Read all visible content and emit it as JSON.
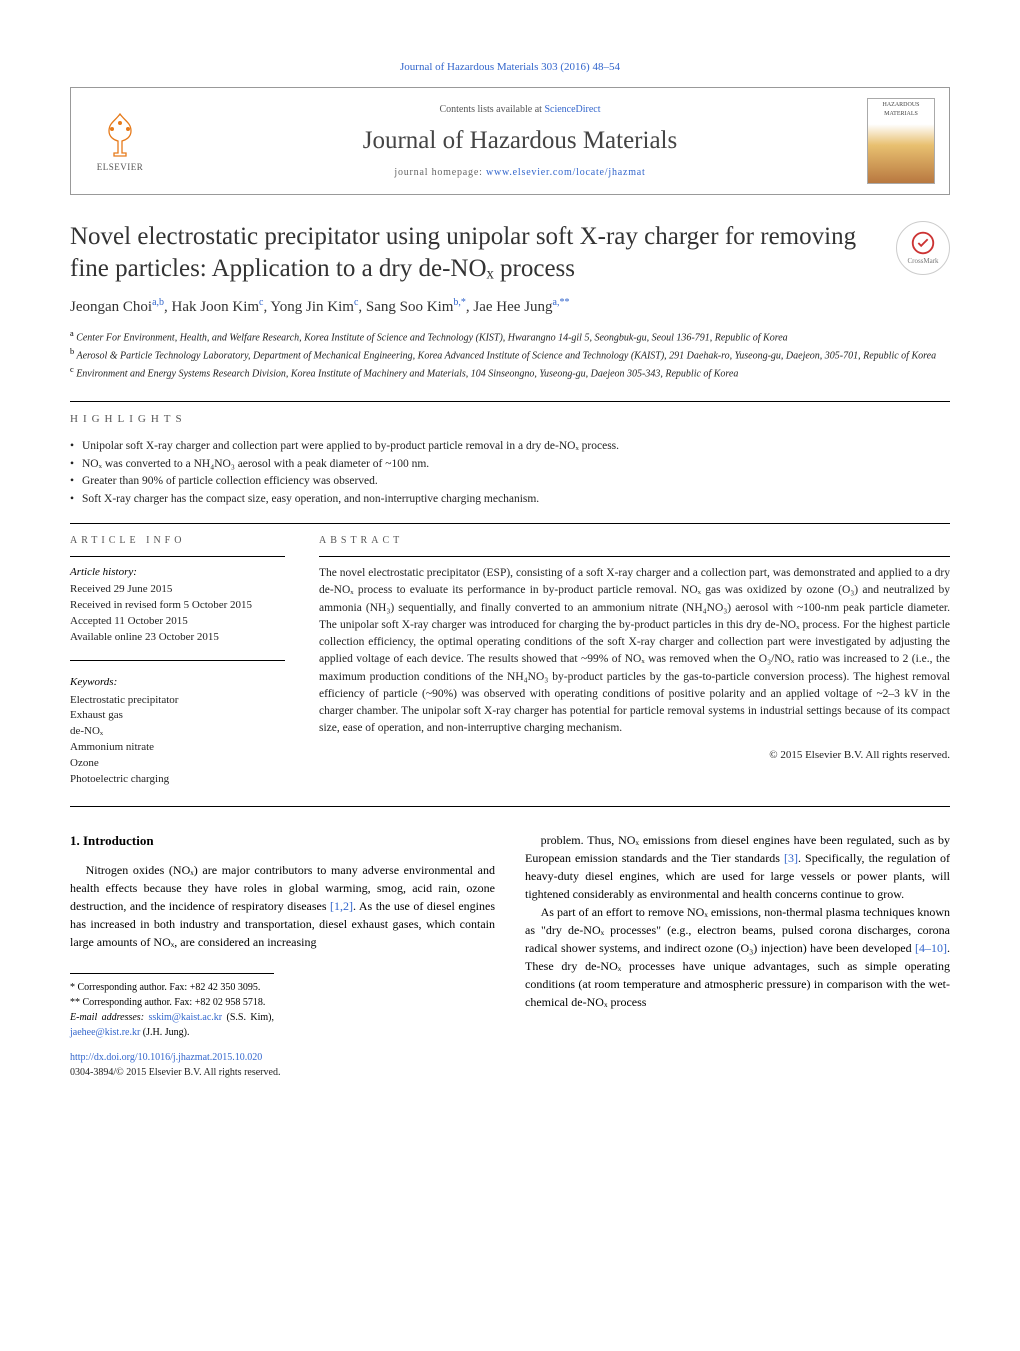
{
  "journal_ref": "Journal of Hazardous Materials 303 (2016) 48–54",
  "header": {
    "contents_prefix": "Contents lists available at ",
    "contents_link": "ScienceDirect",
    "journal_name": "Journal of Hazardous Materials",
    "homepage_prefix": "journal homepage: ",
    "homepage_url": "www.elsevier.com/locate/jhazmat",
    "elsevier_label": "ELSEVIER",
    "cover_label": "HAZARDOUS MATERIALS",
    "crossmark_label": "CrossMark"
  },
  "title": "Novel electrostatic precipitator using unipolar soft X-ray charger for removing fine particles: Application to a dry de-NOₓ process",
  "authors_html": "Jeongan Choi<sup>a,b</sup>, Hak Joon Kim<sup>c</sup>, Yong Jin Kim<sup>c</sup>, Sang Soo Kim<sup>b,*</sup>, Jae Hee Jung<sup>a,**</sup>",
  "affiliations": [
    {
      "sup": "a",
      "text": "Center For Environment, Health, and Welfare Research, Korea Institute of Science and Technology (KIST), Hwarangno 14-gil 5, Seongbuk-gu, Seoul 136-791, Republic of Korea"
    },
    {
      "sup": "b",
      "text": "Aerosol & Particle Technology Laboratory, Department of Mechanical Engineering, Korea Advanced Institute of Science and Technology (KAIST), 291 Daehak-ro, Yuseong-gu, Daejeon, 305-701, Republic of Korea"
    },
    {
      "sup": "c",
      "text": "Environment and Energy Systems Research Division, Korea Institute of Machinery and Materials, 104 Sinseongno, Yuseong-gu, Daejeon 305-343, Republic of Korea"
    }
  ],
  "highlights_label": "highlights",
  "highlights": [
    "Unipolar soft X-ray charger and collection part were applied to by-product particle removal in a dry de-NOₓ process.",
    "NOₓ was converted to a NH₄NO₃ aerosol with a peak diameter of ~100 nm.",
    "Greater than 90% of particle collection efficiency was observed.",
    "Soft X-ray charger has the compact size, easy operation, and non-interruptive charging mechanism."
  ],
  "article_info_label": "article info",
  "history": {
    "label": "Article history:",
    "received": "Received 29 June 2015",
    "revised": "Received in revised form 5 October 2015",
    "accepted": "Accepted 11 October 2015",
    "online": "Available online 23 October 2015"
  },
  "keywords_label": "Keywords:",
  "keywords": [
    "Electrostatic precipitator",
    "Exhaust gas",
    "de-NOₓ",
    "Ammonium nitrate",
    "Ozone",
    "Photoelectric charging"
  ],
  "abstract_label": "abstract",
  "abstract_text": "The novel electrostatic precipitator (ESP), consisting of a soft X-ray charger and a collection part, was demonstrated and applied to a dry de-NOₓ process to evaluate its performance in by-product particle removal. NOₓ gas was oxidized by ozone (O₃) and neutralized by ammonia (NH₃) sequentially, and finally converted to an ammonium nitrate (NH₄NO₃) aerosol with ~100-nm peak particle diameter. The unipolar soft X-ray charger was introduced for charging the by-product particles in this dry de-NOₓ process. For the highest particle collection efficiency, the optimal operating conditions of the soft X-ray charger and collection part were investigated by adjusting the applied voltage of each device. The results showed that ~99% of NOₓ was removed when the O₃/NOₓ ratio was increased to 2 (i.e., the maximum production conditions of the NH₄NO₃ by-product particles by the gas-to-particle conversion process). The highest removal efficiency of particle (~90%) was observed with operating conditions of positive polarity and an applied voltage of ~2–3 kV in the charger chamber. The unipolar soft X-ray charger has potential for particle removal systems in industrial settings because of its compact size, ease of operation, and non-interruptive charging mechanism.",
  "copyright": "© 2015 Elsevier B.V. All rights reserved.",
  "body": {
    "heading": "1. Introduction",
    "col1_p1": "Nitrogen oxides (NOₓ) are major contributors to many adverse environmental and health effects because they have roles in global warming, smog, acid rain, ozone destruction, and the incidence of respiratory diseases [1,2]. As the use of diesel engines has increased in both industry and transportation, diesel exhaust gases, which contain large amounts of NOₓ, are considered an increasing",
    "col2_p1": "problem. Thus, NOₓ emissions from diesel engines have been regulated, such as by European emission standards and the Tier standards [3]. Specifically, the regulation of heavy-duty diesel engines, which are used for large vessels or power plants, will tightened considerably as environmental and health concerns continue to grow.",
    "col2_p2": "As part of an effort to remove NOₓ emissions, non-thermal plasma techniques known as \"dry de-NOₓ processes\" (e.g., electron beams, pulsed corona discharges, corona radical shower systems, and indirect ozone (O₃) injection) have been developed [4–10]. These dry de-NOₓ processes have unique advantages, such as simple operating conditions (at room temperature and atmospheric pressure) in comparison with the wet-chemical de-NOₓ process"
  },
  "footnotes": {
    "corr1": "* Corresponding author. Fax: +82 42 350 3095.",
    "corr2": "** Corresponding author. Fax: +82 02 958 5718.",
    "emails_label": "E-mail addresses: ",
    "email1": "sskim@kaist.ac.kr",
    "email1_name": " (S.S. Kim), ",
    "email2": "jaehee@kist.re.kr",
    "email2_name": " (J.H. Jung)."
  },
  "doi": "http://dx.doi.org/10.1016/j.jhazmat.2015.10.020",
  "issn_line": "0304-3894/© 2015 Elsevier B.V. All rights reserved.",
  "colors": {
    "link": "#3366cc",
    "text": "#222222",
    "rule": "#000000",
    "elsevier_orange": "#e67a1a"
  }
}
